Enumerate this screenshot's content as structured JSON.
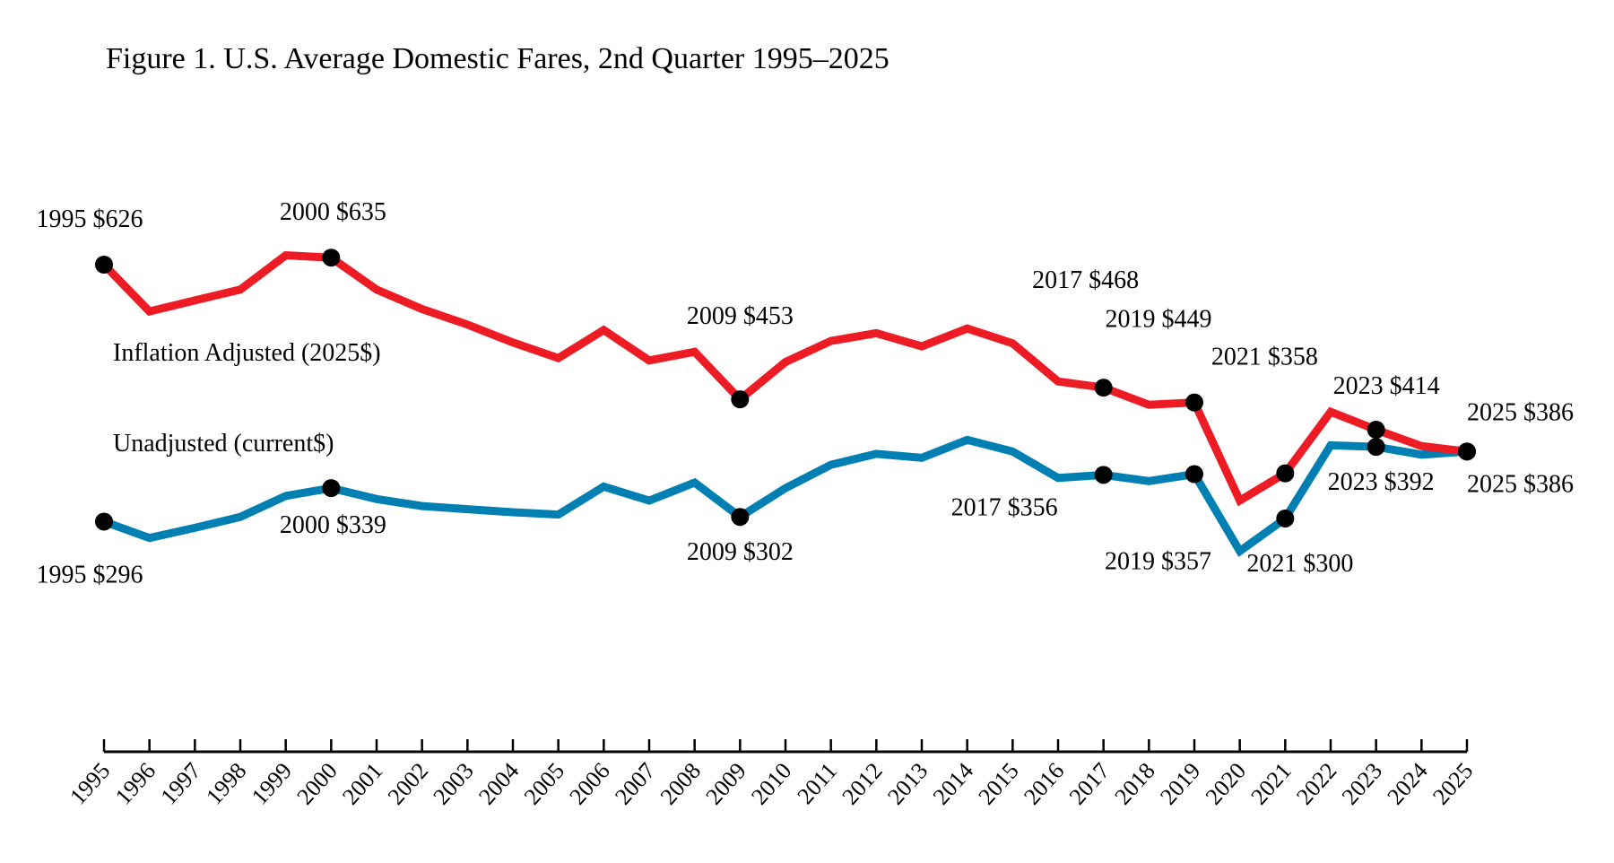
{
  "chart_data": {
    "type": "line",
    "title": "Figure 1. U.S. Average Domestic Fares, 2nd Quarter 1995–2025",
    "xlabel": "",
    "ylabel": "",
    "grid": false,
    "y_axis_shown": false,
    "x": [
      1995,
      1996,
      1997,
      1998,
      1999,
      2000,
      2001,
      2002,
      2003,
      2004,
      2005,
      2006,
      2007,
      2008,
      2009,
      2010,
      2011,
      2012,
      2013,
      2014,
      2015,
      2016,
      2017,
      2018,
      2019,
      2020,
      2021,
      2022,
      2023,
      2024,
      2025
    ],
    "x_tick_labels": [
      "1995",
      "1996",
      "1997",
      "1998",
      "1999",
      "2000",
      "2001",
      "2002",
      "2003",
      "2004",
      "2005",
      "2006",
      "2007",
      "2008",
      "2009",
      "2010",
      "2011",
      "2012",
      "2013",
      "2014",
      "2015",
      "2016",
      "2017",
      "2018",
      "2019",
      "2020",
      "2021",
      "2022",
      "2023",
      "2024",
      "2025"
    ],
    "series": [
      {
        "name": "Inflation Adjusted (2025$)",
        "color": "#ed1c24",
        "values": [
          626,
          566,
          580,
          594,
          638,
          635,
          594,
          569,
          549,
          526,
          506,
          542,
          503,
          514,
          453,
          501,
          528,
          538,
          521,
          544,
          525,
          476,
          468,
          446,
          449,
          323,
          358,
          437,
          414,
          393,
          386
        ],
        "annotations": [
          {
            "year": 1995,
            "text": "1995 $626"
          },
          {
            "year": 2000,
            "text": "2000 $635"
          },
          {
            "year": 2009,
            "text": "2009 $453"
          },
          {
            "year": 2017,
            "text": "2017 $468"
          },
          {
            "year": 2019,
            "text": "2019 $449"
          },
          {
            "year": 2021,
            "text": "2021 $358"
          },
          {
            "year": 2023,
            "text": "2023 $414"
          },
          {
            "year": 2025,
            "text": "2025 $386"
          }
        ]
      },
      {
        "name": "Unadjusted (current$)",
        "color": "#0080b2",
        "values": [
          296,
          275,
          288,
          302,
          329,
          339,
          325,
          316,
          312,
          308,
          305,
          341,
          323,
          346,
          302,
          339,
          369,
          383,
          378,
          401,
          386,
          352,
          356,
          348,
          357,
          258,
          300,
          394,
          392,
          382,
          386
        ],
        "annotations": [
          {
            "year": 1995,
            "text": "1995 $296"
          },
          {
            "year": 2000,
            "text": "2000 $339"
          },
          {
            "year": 2009,
            "text": "2009 $302"
          },
          {
            "year": 2017,
            "text": "2017 $356"
          },
          {
            "year": 2019,
            "text": "2019 $357"
          },
          {
            "year": 2021,
            "text": "2021 $300"
          },
          {
            "year": 2023,
            "text": "2023 $392"
          },
          {
            "year": 2025,
            "text": "2025 $386"
          }
        ]
      }
    ],
    "marker_color": "#000000"
  }
}
